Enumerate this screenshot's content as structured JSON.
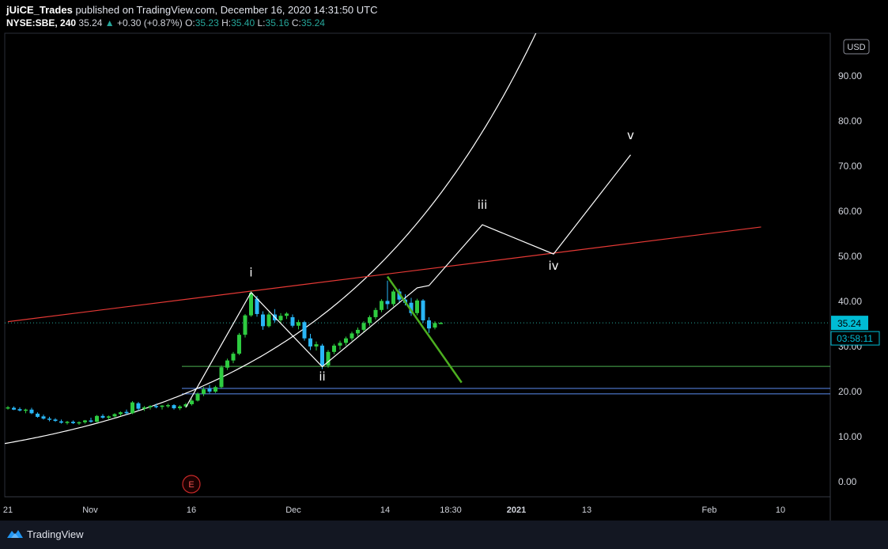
{
  "header": {
    "author": "jUiCE_Trades",
    "published": " published on TradingView.com, December 16, 2020 14:31:50 UTC",
    "symbol": "NYSE:SBE, 240",
    "last": "35.24",
    "change_arrow": "▲",
    "change": "+0.30 (+0.87%)",
    "open_label": "O:",
    "open": "35.23",
    "high_label": "H:",
    "high": "35.40",
    "low_label": "L:",
    "low": "35.16",
    "close_label": "C:",
    "close": "35.24"
  },
  "footer": {
    "brand": "TradingView",
    "logo_icon": "tradingview-logo-icon"
  },
  "colors": {
    "background": "#000000",
    "up": "#2ecc40",
    "down": "#29b6f6",
    "red_trend": "#e53935",
    "green_trend": "#4caf20",
    "wave": "#ffffff",
    "support_green": "#4caf50",
    "support_blue": "#5b8def",
    "price_tag": "#00bcd4"
  },
  "chart_data": {
    "type": "candlestick",
    "currency": "USD",
    "price_axis": {
      "ticks": [
        "90.00",
        "80.00",
        "70.00",
        "60.00",
        "50.00",
        "40.00",
        "30.00",
        "20.00",
        "10.00",
        "0.00"
      ],
      "range": [
        -3,
        100
      ]
    },
    "time_axis_labels": [
      "21",
      "Nov",
      "16",
      "Dec",
      "14",
      "18:30",
      "2021",
      "13",
      "Feb",
      "10"
    ],
    "current_price": "35.24",
    "countdown": "03:58:11",
    "earnings_marker": "E",
    "candles_series": [
      {
        "t": 0.0,
        "o": 16.3,
        "h": 16.8,
        "l": 16.0,
        "c": 16.5
      },
      {
        "t": 1.0,
        "o": 16.4,
        "h": 16.7,
        "l": 15.9,
        "c": 16.0
      },
      {
        "t": 2.0,
        "o": 16.1,
        "h": 16.5,
        "l": 15.6,
        "c": 15.8
      },
      {
        "t": 3.0,
        "o": 15.8,
        "h": 16.2,
        "l": 15.2,
        "c": 16.0
      },
      {
        "t": 4.0,
        "o": 16.0,
        "h": 16.4,
        "l": 15.0,
        "c": 15.2
      },
      {
        "t": 5.0,
        "o": 15.1,
        "h": 15.4,
        "l": 14.2,
        "c": 14.4
      },
      {
        "t": 6.0,
        "o": 14.5,
        "h": 14.9,
        "l": 13.8,
        "c": 14.0
      },
      {
        "t": 7.0,
        "o": 14.0,
        "h": 14.4,
        "l": 13.4,
        "c": 13.9
      },
      {
        "t": 8.0,
        "o": 13.8,
        "h": 14.1,
        "l": 13.3,
        "c": 13.5
      },
      {
        "t": 9.0,
        "o": 13.4,
        "h": 13.8,
        "l": 12.9,
        "c": 13.1
      },
      {
        "t": 10.0,
        "o": 13.1,
        "h": 13.5,
        "l": 12.7,
        "c": 13.3
      },
      {
        "t": 11.0,
        "o": 13.3,
        "h": 13.6,
        "l": 12.8,
        "c": 13.0
      },
      {
        "t": 12.0,
        "o": 13.0,
        "h": 13.4,
        "l": 12.6,
        "c": 13.2
      },
      {
        "t": 13.0,
        "o": 13.2,
        "h": 13.7,
        "l": 12.9,
        "c": 13.6
      },
      {
        "t": 14.0,
        "o": 13.6,
        "h": 14.2,
        "l": 13.1,
        "c": 13.3
      },
      {
        "t": 15.0,
        "o": 13.3,
        "h": 14.8,
        "l": 13.2,
        "c": 14.6
      },
      {
        "t": 16.0,
        "o": 14.6,
        "h": 15.0,
        "l": 14.0,
        "c": 14.2
      },
      {
        "t": 17.0,
        "o": 14.2,
        "h": 14.7,
        "l": 13.8,
        "c": 14.5
      },
      {
        "t": 18.0,
        "o": 14.5,
        "h": 15.2,
        "l": 14.3,
        "c": 15.0
      },
      {
        "t": 19.0,
        "o": 15.0,
        "h": 15.6,
        "l": 14.6,
        "c": 15.4
      },
      {
        "t": 20.0,
        "o": 15.5,
        "h": 16.0,
        "l": 14.9,
        "c": 15.2
      },
      {
        "t": 21.0,
        "o": 15.2,
        "h": 17.9,
        "l": 15.0,
        "c": 17.6
      },
      {
        "t": 22.0,
        "o": 17.4,
        "h": 17.7,
        "l": 15.8,
        "c": 16.2
      },
      {
        "t": 23.0,
        "o": 16.2,
        "h": 16.8,
        "l": 15.7,
        "c": 16.5
      },
      {
        "t": 24.0,
        "o": 16.5,
        "h": 17.0,
        "l": 16.0,
        "c": 16.8
      },
      {
        "t": 25.0,
        "o": 16.8,
        "h": 17.3,
        "l": 16.3,
        "c": 16.6
      },
      {
        "t": 26.0,
        "o": 16.6,
        "h": 17.0,
        "l": 16.0,
        "c": 16.9
      },
      {
        "t": 27.0,
        "o": 16.9,
        "h": 17.3,
        "l": 16.4,
        "c": 17.0
      },
      {
        "t": 28.0,
        "o": 17.0,
        "h": 17.2,
        "l": 16.0,
        "c": 16.3
      },
      {
        "t": 29.0,
        "o": 16.3,
        "h": 17.0,
        "l": 15.9,
        "c": 16.7
      },
      {
        "t": 30.0,
        "o": 16.7,
        "h": 17.5,
        "l": 16.4,
        "c": 17.2
      },
      {
        "t": 31.0,
        "o": 17.2,
        "h": 18.4,
        "l": 16.9,
        "c": 18.0
      },
      {
        "t": 32.0,
        "o": 18.0,
        "h": 19.8,
        "l": 17.8,
        "c": 19.5
      },
      {
        "t": 33.0,
        "o": 19.5,
        "h": 21.0,
        "l": 19.0,
        "c": 20.5
      },
      {
        "t": 34.0,
        "o": 20.6,
        "h": 21.5,
        "l": 19.6,
        "c": 20.0
      },
      {
        "t": 35.0,
        "o": 20.0,
        "h": 21.3,
        "l": 19.7,
        "c": 21.0
      },
      {
        "t": 36.0,
        "o": 21.0,
        "h": 25.8,
        "l": 20.7,
        "c": 25.4
      },
      {
        "t": 37.0,
        "o": 25.3,
        "h": 27.3,
        "l": 24.8,
        "c": 26.9
      },
      {
        "t": 38.0,
        "o": 26.9,
        "h": 28.8,
        "l": 26.3,
        "c": 28.4
      },
      {
        "t": 39.0,
        "o": 28.4,
        "h": 33.0,
        "l": 28.1,
        "c": 32.6
      },
      {
        "t": 40.0,
        "o": 32.6,
        "h": 37.2,
        "l": 32.0,
        "c": 36.9
      },
      {
        "t": 41.0,
        "o": 36.9,
        "h": 42.3,
        "l": 36.6,
        "c": 41.9
      },
      {
        "t": 42.0,
        "o": 40.6,
        "h": 41.2,
        "l": 36.6,
        "c": 37.2
      },
      {
        "t": 43.0,
        "o": 37.1,
        "h": 37.8,
        "l": 33.7,
        "c": 34.5
      },
      {
        "t": 44.0,
        "o": 34.5,
        "h": 37.6,
        "l": 34.2,
        "c": 37.1
      },
      {
        "t": 45.0,
        "o": 37.1,
        "h": 38.3,
        "l": 35.3,
        "c": 35.8
      },
      {
        "t": 46.0,
        "o": 35.8,
        "h": 37.4,
        "l": 35.2,
        "c": 36.8
      },
      {
        "t": 47.0,
        "o": 36.8,
        "h": 37.6,
        "l": 36.1,
        "c": 37.3
      },
      {
        "t": 48.0,
        "o": 36.5,
        "h": 37.1,
        "l": 34.2,
        "c": 34.6
      },
      {
        "t": 49.0,
        "o": 34.6,
        "h": 35.9,
        "l": 33.8,
        "c": 35.4
      },
      {
        "t": 50.0,
        "o": 35.4,
        "h": 35.7,
        "l": 31.3,
        "c": 31.8
      },
      {
        "t": 51.0,
        "o": 31.8,
        "h": 32.8,
        "l": 29.2,
        "c": 30.0
      },
      {
        "t": 52.0,
        "o": 30.0,
        "h": 31.1,
        "l": 29.1,
        "c": 30.5
      },
      {
        "t": 53.0,
        "o": 30.2,
        "h": 30.6,
        "l": 25.0,
        "c": 25.8
      },
      {
        "t": 54.0,
        "o": 25.8,
        "h": 29.2,
        "l": 25.3,
        "c": 28.8
      },
      {
        "t": 55.0,
        "o": 28.8,
        "h": 30.6,
        "l": 28.3,
        "c": 30.2
      },
      {
        "t": 56.0,
        "o": 30.2,
        "h": 31.3,
        "l": 29.3,
        "c": 30.8
      },
      {
        "t": 57.0,
        "o": 30.8,
        "h": 32.2,
        "l": 30.2,
        "c": 31.8
      },
      {
        "t": 58.0,
        "o": 31.8,
        "h": 33.3,
        "l": 31.3,
        "c": 32.9
      },
      {
        "t": 59.0,
        "o": 32.9,
        "h": 34.2,
        "l": 32.3,
        "c": 33.7
      },
      {
        "t": 60.0,
        "o": 33.7,
        "h": 35.6,
        "l": 33.2,
        "c": 35.2
      },
      {
        "t": 61.0,
        "o": 35.2,
        "h": 36.9,
        "l": 34.6,
        "c": 36.5
      },
      {
        "t": 62.0,
        "o": 36.5,
        "h": 38.6,
        "l": 36.0,
        "c": 38.1
      },
      {
        "t": 63.0,
        "o": 38.1,
        "h": 40.5,
        "l": 37.6,
        "c": 40.1
      },
      {
        "t": 64.0,
        "o": 40.1,
        "h": 44.6,
        "l": 38.3,
        "c": 39.4
      },
      {
        "t": 65.0,
        "o": 39.4,
        "h": 42.6,
        "l": 38.9,
        "c": 42.2
      },
      {
        "t": 66.0,
        "o": 42.2,
        "h": 42.8,
        "l": 39.8,
        "c": 40.4
      },
      {
        "t": 67.0,
        "o": 40.4,
        "h": 41.6,
        "l": 39.1,
        "c": 39.7
      },
      {
        "t": 68.0,
        "o": 39.7,
        "h": 40.8,
        "l": 36.8,
        "c": 37.4
      },
      {
        "t": 69.0,
        "o": 37.4,
        "h": 40.6,
        "l": 36.9,
        "c": 40.2
      },
      {
        "t": 70.0,
        "o": 40.2,
        "h": 40.5,
        "l": 35.2,
        "c": 35.8
      },
      {
        "t": 71.0,
        "o": 35.8,
        "h": 36.5,
        "l": 33.0,
        "c": 34.0
      },
      {
        "t": 72.0,
        "o": 34.2,
        "h": 35.6,
        "l": 33.8,
        "c": 35.2
      },
      {
        "t": 73.0,
        "o": 35.23,
        "h": 35.4,
        "l": 35.16,
        "c": 35.24
      }
    ],
    "horizontal_levels": [
      {
        "price": 25.6,
        "color": "#4caf50"
      },
      {
        "price": 20.7,
        "color": "#5b8def"
      },
      {
        "price": 19.5,
        "color": "#5b8def"
      }
    ],
    "red_trendline": [
      [
        0,
        35.5
      ],
      [
        127,
        56.5
      ]
    ],
    "green_trendline": [
      [
        64,
        45.5
      ],
      [
        76.5,
        22.0
      ]
    ],
    "wave_path": [
      [
        30,
        16.5
      ],
      [
        41,
        42.0
      ],
      [
        53,
        25.5
      ],
      [
        69,
        43.0
      ],
      [
        71,
        43.5
      ],
      [
        80,
        57.0
      ],
      [
        92,
        50.5
      ],
      [
        105,
        72.5
      ]
    ],
    "wave_labels": [
      {
        "text": "i",
        "t": 41,
        "p": 45.5
      },
      {
        "text": "ii",
        "t": 53,
        "p": 22.5
      },
      {
        "text": "iii",
        "t": 80,
        "p": 60.5
      },
      {
        "text": "iv",
        "t": 92,
        "p": 47.0
      },
      {
        "text": "v",
        "t": 105,
        "p": 76.0
      }
    ],
    "growth_curve": {
      "base_price": 8.6,
      "rate": 0.0275,
      "t_start": 0
    }
  }
}
